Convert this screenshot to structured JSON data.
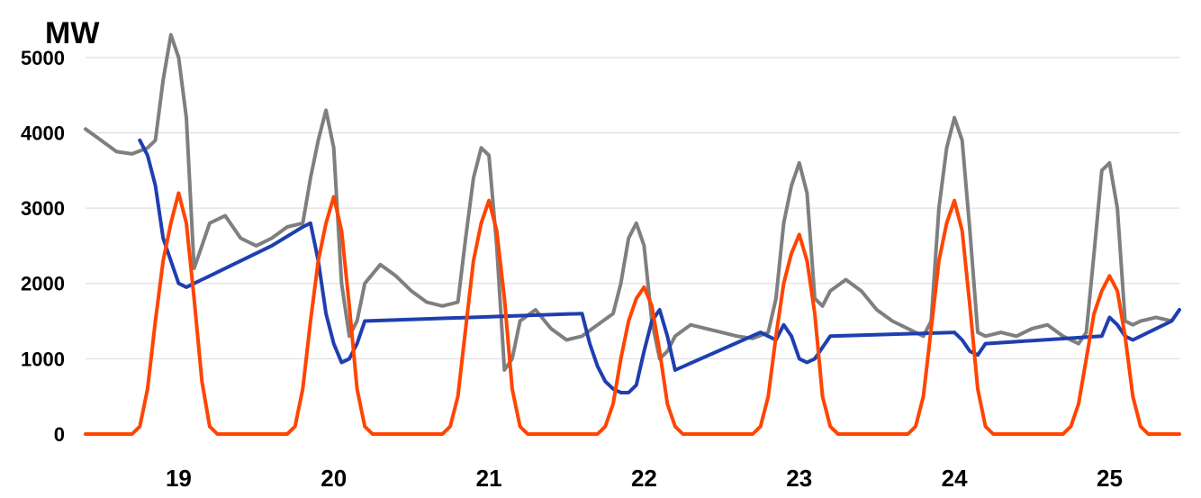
{
  "chart_data": {
    "type": "line",
    "unit_label": "MW",
    "xlabel": "",
    "ylabel": "",
    "xlim": [
      18.4,
      25.45
    ],
    "ylim": [
      0,
      5500
    ],
    "y_ticks": [
      0,
      1000,
      2000,
      3000,
      4000,
      5000
    ],
    "x_ticks": [
      19,
      20,
      21,
      22,
      23,
      24,
      25
    ],
    "x_tick_labels": [
      "19",
      "20",
      "21",
      "22",
      "23",
      "24",
      "25"
    ],
    "grid": "horizontal",
    "legend": "none",
    "series": [
      {
        "color": "#7f7f7f",
        "x": [
          18.4,
          18.5,
          18.6,
          18.7,
          18.8,
          18.85,
          18.9,
          18.95,
          19.0,
          19.05,
          19.1,
          19.15,
          19.2,
          19.3,
          19.4,
          19.5,
          19.6,
          19.7,
          19.8,
          19.85,
          19.9,
          19.95,
          20.0,
          20.05,
          20.1,
          20.15,
          20.2,
          20.3,
          20.4,
          20.5,
          20.6,
          20.7,
          20.8,
          20.85,
          20.9,
          20.95,
          21.0,
          21.05,
          21.1,
          21.15,
          21.2,
          21.3,
          21.4,
          21.5,
          21.6,
          21.7,
          21.8,
          21.85,
          21.9,
          21.95,
          22.0,
          22.05,
          22.1,
          22.15,
          22.2,
          22.3,
          22.4,
          22.5,
          22.6,
          22.7,
          22.8,
          22.85,
          22.9,
          22.95,
          23.0,
          23.05,
          23.1,
          23.15,
          23.2,
          23.3,
          23.4,
          23.5,
          23.6,
          23.7,
          23.8,
          23.85,
          23.9,
          23.95,
          24.0,
          24.05,
          24.1,
          24.15,
          24.2,
          24.3,
          24.4,
          24.5,
          24.6,
          24.7,
          24.8,
          24.85,
          24.9,
          24.95,
          25.0,
          25.05,
          25.1,
          25.15,
          25.2,
          25.3,
          25.4,
          25.45
        ],
        "values": [
          4050,
          3900,
          3750,
          3720,
          3800,
          3900,
          4700,
          5300,
          5000,
          4200,
          2200,
          2500,
          2800,
          2900,
          2600,
          2500,
          2600,
          2750,
          2800,
          3400,
          3900,
          4300,
          3800,
          2000,
          1300,
          1500,
          2000,
          2250,
          2100,
          1900,
          1750,
          1700,
          1750,
          2600,
          3400,
          3800,
          3700,
          2500,
          850,
          1000,
          1500,
          1650,
          1400,
          1250,
          1300,
          1450,
          1600,
          2000,
          2600,
          2800,
          2500,
          1500,
          1000,
          1100,
          1300,
          1450,
          1400,
          1350,
          1300,
          1270,
          1350,
          1800,
          2800,
          3300,
          3600,
          3200,
          1800,
          1700,
          1900,
          2050,
          1900,
          1650,
          1500,
          1400,
          1300,
          1500,
          3000,
          3800,
          4200,
          3900,
          2700,
          1350,
          1300,
          1350,
          1300,
          1400,
          1450,
          1300,
          1200,
          1350,
          2400,
          3500,
          3600,
          3000,
          1500,
          1450,
          1500,
          1550,
          1500,
          1650
        ]
      },
      {
        "color": "#1f3fb0",
        "x": [
          18.75,
          18.8,
          18.85,
          18.9,
          18.95,
          19.0,
          19.05,
          19.1,
          19.15,
          19.2,
          19.6,
          19.8,
          19.85,
          19.9,
          19.95,
          20.0,
          20.05,
          20.1,
          20.15,
          20.2,
          21.6,
          21.65,
          21.7,
          21.75,
          21.8,
          21.85,
          21.9,
          21.95,
          22.0,
          22.05,
          22.1,
          22.15,
          22.2,
          22.75,
          22.8,
          22.85,
          22.9,
          22.95,
          23.0,
          23.05,
          23.1,
          23.15,
          23.2,
          24.0,
          24.05,
          24.1,
          24.15,
          24.2,
          24.95,
          25.0,
          25.05,
          25.1,
          25.15,
          25.2,
          25.3,
          25.4,
          25.45
        ],
        "values": [
          3900,
          3700,
          3300,
          2600,
          2300,
          2000,
          1950,
          2000,
          2050,
          2100,
          2500,
          2750,
          2800,
          2300,
          1600,
          1200,
          950,
          1000,
          1200,
          1500,
          1600,
          1200,
          900,
          700,
          600,
          550,
          550,
          650,
          1100,
          1500,
          1650,
          1300,
          850,
          1350,
          1300,
          1250,
          1450,
          1300,
          1000,
          950,
          1000,
          1150,
          1300,
          1350,
          1250,
          1100,
          1050,
          1200,
          1300,
          1550,
          1450,
          1300,
          1250,
          1300,
          1400,
          1500,
          1650
        ]
      },
      {
        "color": "#ff4500",
        "x": [
          18.4,
          18.7,
          18.75,
          18.8,
          18.85,
          18.9,
          18.95,
          19.0,
          19.05,
          19.1,
          19.15,
          19.2,
          19.25,
          19.7,
          19.75,
          19.8,
          19.85,
          19.9,
          19.95,
          20.0,
          20.05,
          20.1,
          20.15,
          20.2,
          20.25,
          20.7,
          20.75,
          20.8,
          20.85,
          20.9,
          20.95,
          21.0,
          21.05,
          21.1,
          21.15,
          21.2,
          21.25,
          21.7,
          21.75,
          21.8,
          21.85,
          21.9,
          21.95,
          22.0,
          22.05,
          22.1,
          22.15,
          22.2,
          22.25,
          22.7,
          22.75,
          22.8,
          22.85,
          22.9,
          22.95,
          23.0,
          23.05,
          23.1,
          23.15,
          23.2,
          23.25,
          23.7,
          23.75,
          23.8,
          23.85,
          23.9,
          23.95,
          24.0,
          24.05,
          24.1,
          24.15,
          24.2,
          24.25,
          24.7,
          24.75,
          24.8,
          24.85,
          24.9,
          24.95,
          25.0,
          25.05,
          25.1,
          25.15,
          25.2,
          25.25,
          25.45
        ],
        "values": [
          0,
          0,
          100,
          600,
          1500,
          2300,
          2800,
          3200,
          2800,
          1800,
          700,
          100,
          0,
          0,
          100,
          600,
          1500,
          2300,
          2800,
          3150,
          2700,
          1700,
          600,
          100,
          0,
          0,
          100,
          500,
          1400,
          2300,
          2800,
          3100,
          2700,
          1800,
          600,
          100,
          0,
          0,
          100,
          400,
          1000,
          1500,
          1800,
          1950,
          1700,
          1100,
          400,
          100,
          0,
          0,
          100,
          500,
          1300,
          2000,
          2400,
          2650,
          2300,
          1600,
          500,
          100,
          0,
          0,
          100,
          500,
          1400,
          2300,
          2800,
          3100,
          2700,
          1700,
          600,
          100,
          0,
          0,
          100,
          400,
          1000,
          1600,
          1900,
          2100,
          1900,
          1300,
          500,
          100,
          0,
          0
        ]
      }
    ]
  }
}
